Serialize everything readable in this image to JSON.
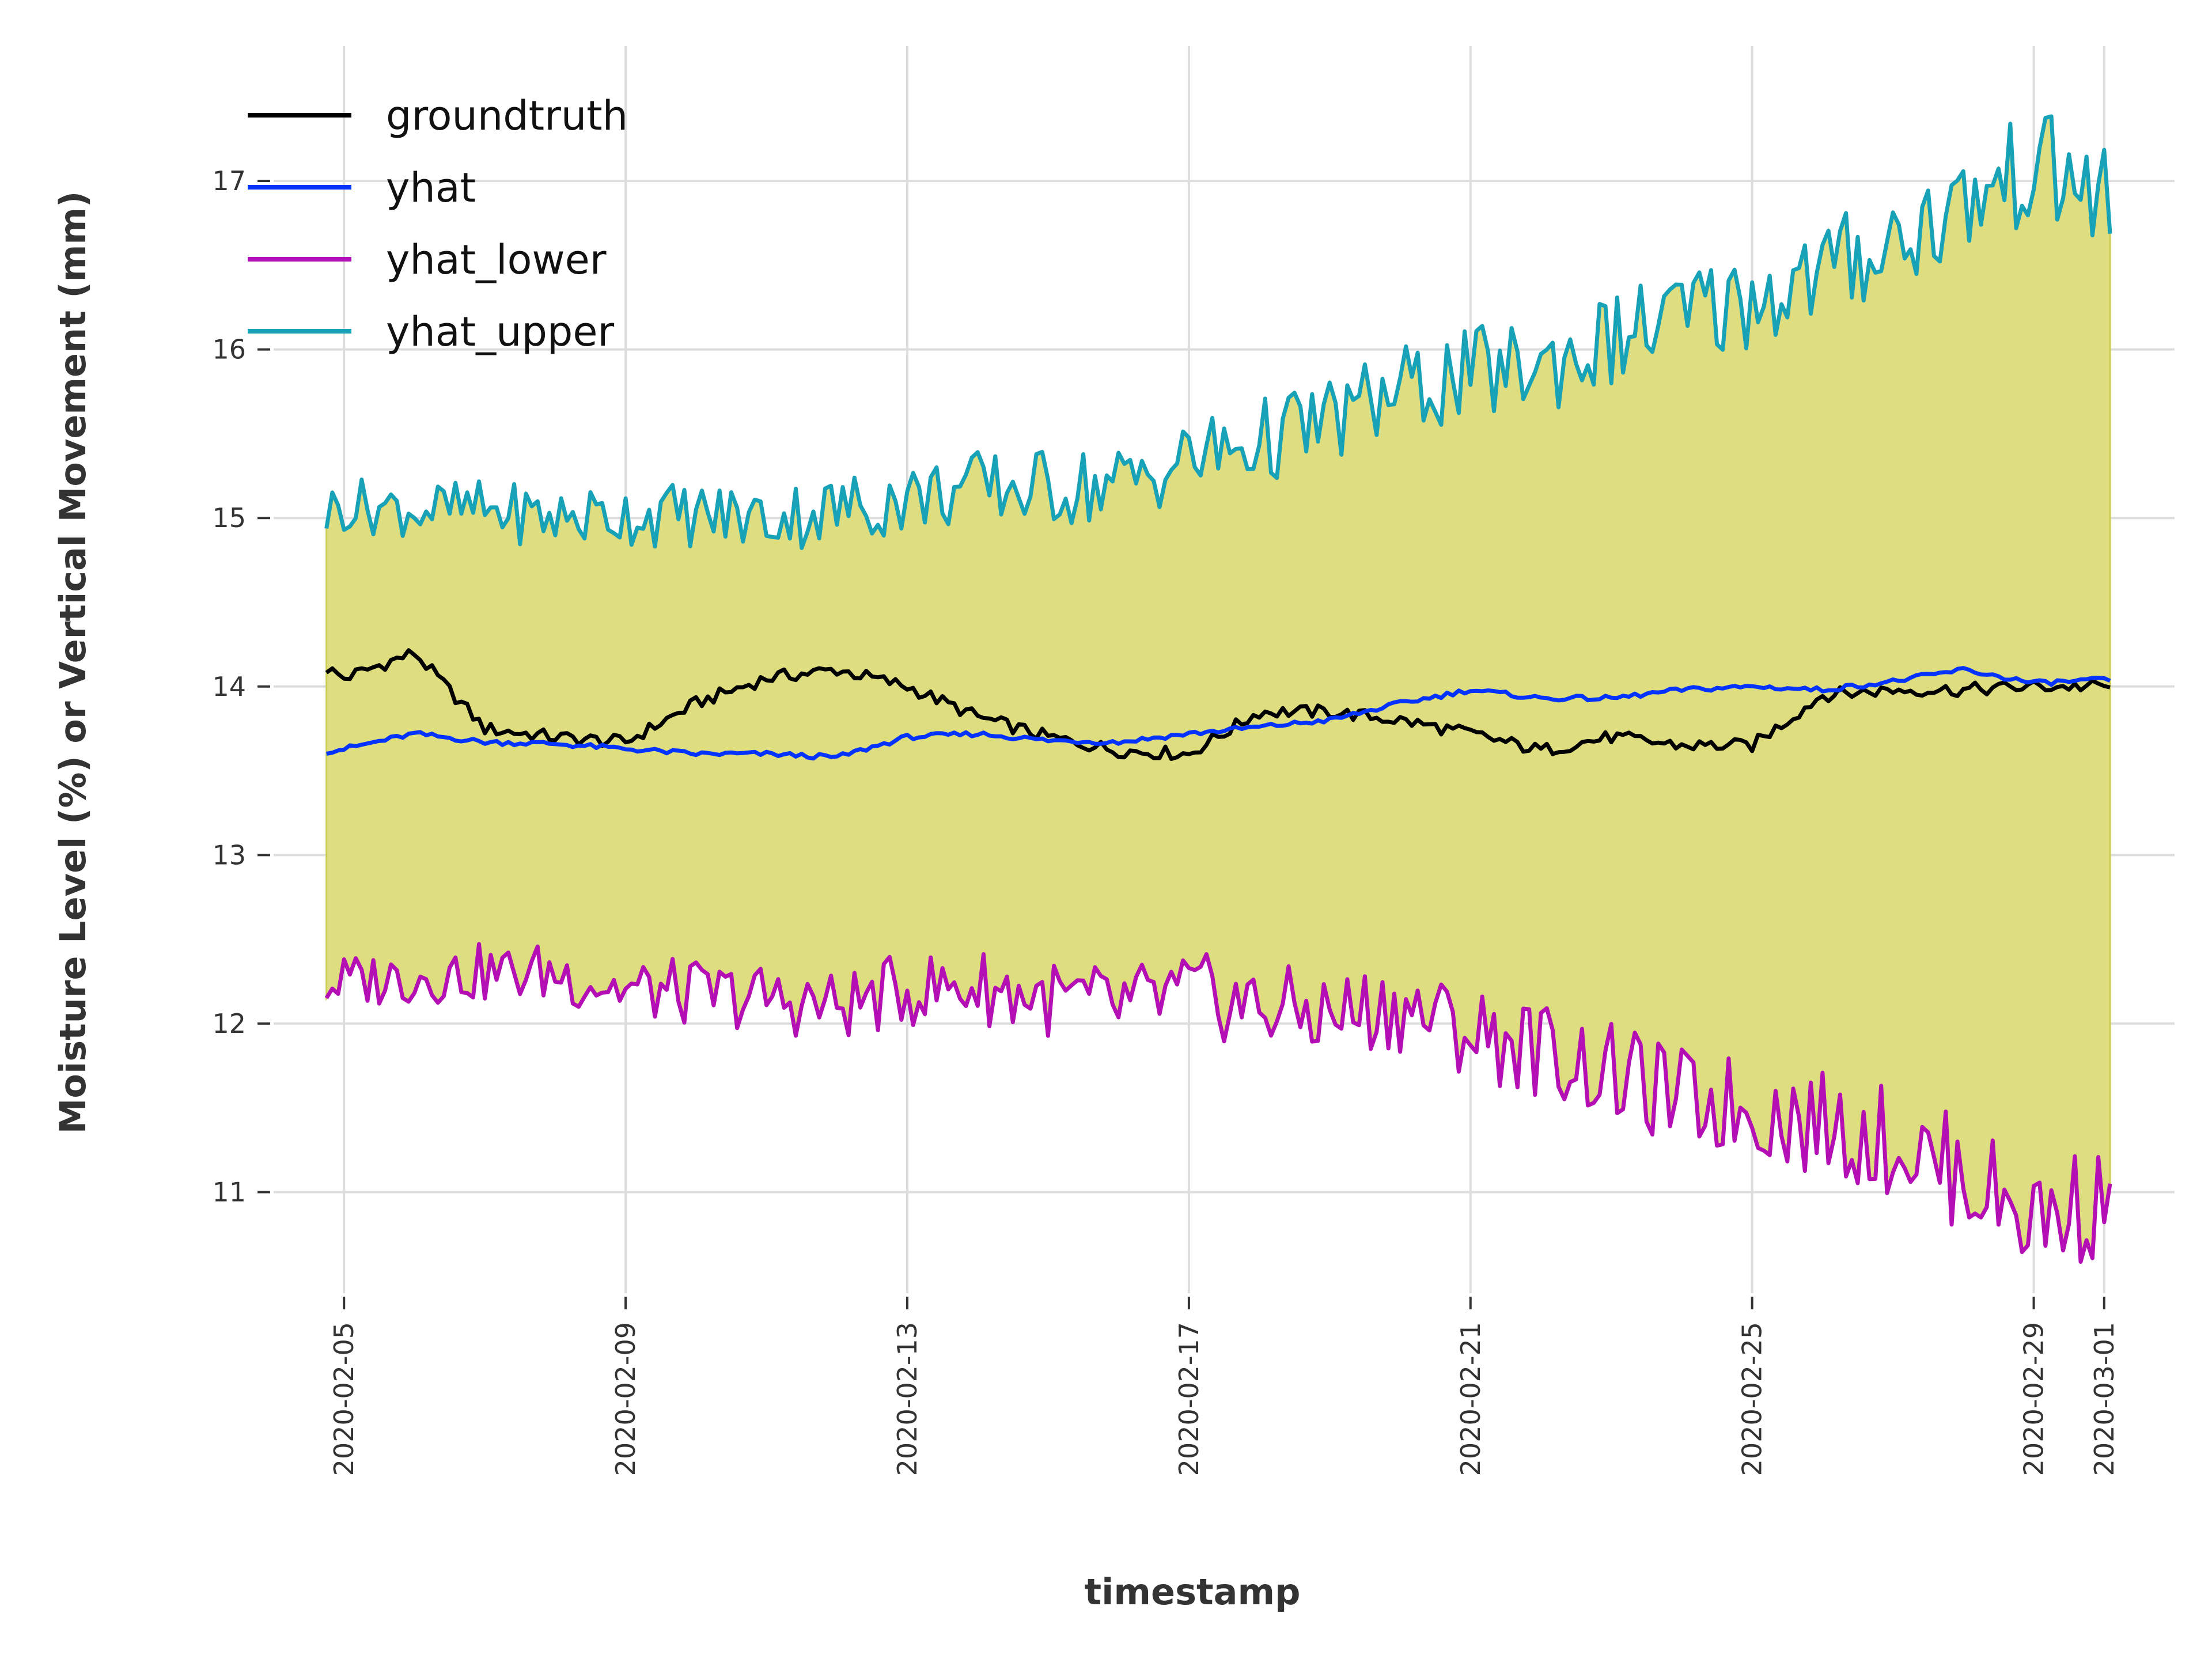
{
  "chart_data": {
    "type": "line",
    "title": "",
    "xlabel": "timestamp",
    "ylabel": "Moisture Level (%) or Vertical Movement (mm)",
    "x_range": [
      "2020-02-04",
      "2020-03-02"
    ],
    "ylim": [
      10.4,
      17.8
    ],
    "x_ticks": [
      "2020-02-05",
      "2020-02-09",
      "2020-02-13",
      "2020-02-17",
      "2020-02-21",
      "2020-02-25",
      "2020-02-29",
      "2020-03-01"
    ],
    "y_ticks": [
      11,
      12,
      13,
      14,
      15,
      16,
      17
    ],
    "grid": true,
    "legend_position": "top-left",
    "band": {
      "lower": "yhat_lower",
      "upper": "yhat_upper",
      "color": "#dede80"
    },
    "x": [
      "2020-02-04",
      "2020-02-05",
      "2020-02-06",
      "2020-02-07",
      "2020-02-08",
      "2020-02-09",
      "2020-02-10",
      "2020-02-11",
      "2020-02-12",
      "2020-02-13",
      "2020-02-14",
      "2020-02-15",
      "2020-02-16",
      "2020-02-17",
      "2020-02-18",
      "2020-02-19",
      "2020-02-20",
      "2020-02-21",
      "2020-02-22",
      "2020-02-23",
      "2020-02-24",
      "2020-02-25",
      "2020-02-26",
      "2020-02-27",
      "2020-02-28",
      "2020-02-29",
      "2020-03-01"
    ],
    "series": [
      {
        "name": "groundtruth",
        "color": "#000000",
        "values": [
          14.28,
          14.05,
          14.2,
          13.75,
          13.7,
          13.67,
          13.9,
          14.05,
          14.1,
          14.0,
          13.82,
          13.7,
          13.62,
          13.6,
          13.85,
          13.85,
          13.8,
          13.72,
          13.62,
          13.7,
          13.65,
          13.65,
          13.95,
          13.98,
          13.98,
          14.0,
          14.0
        ]
      },
      {
        "name": "yhat",
        "color": "#0433ff",
        "values": [
          13.57,
          13.63,
          13.72,
          13.67,
          13.66,
          13.63,
          13.6,
          13.6,
          13.58,
          13.7,
          13.72,
          13.68,
          13.67,
          13.72,
          13.76,
          13.8,
          13.9,
          13.98,
          13.93,
          13.93,
          13.98,
          14.0,
          13.98,
          14.03,
          14.1,
          14.02,
          14.04
        ]
      },
      {
        "name": "yhat_lower",
        "color": "#b40fb4",
        "values": [
          12.15,
          12.25,
          12.28,
          12.3,
          12.3,
          12.2,
          12.18,
          12.15,
          12.1,
          12.2,
          12.22,
          12.15,
          12.1,
          12.18,
          12.1,
          12.05,
          12.1,
          11.95,
          11.85,
          11.7,
          11.55,
          11.5,
          11.4,
          11.3,
          11.1,
          10.85,
          10.95
        ]
      },
      {
        "name": "yhat_upper",
        "color": "#17a2b8",
        "values": [
          14.88,
          15.08,
          15.05,
          15.05,
          15.0,
          15.02,
          15.02,
          15.0,
          15.05,
          15.12,
          15.18,
          15.18,
          15.2,
          15.35,
          15.45,
          15.58,
          15.75,
          15.85,
          15.9,
          16.05,
          16.2,
          16.3,
          16.45,
          16.65,
          16.85,
          17.1,
          16.9
        ]
      }
    ]
  }
}
